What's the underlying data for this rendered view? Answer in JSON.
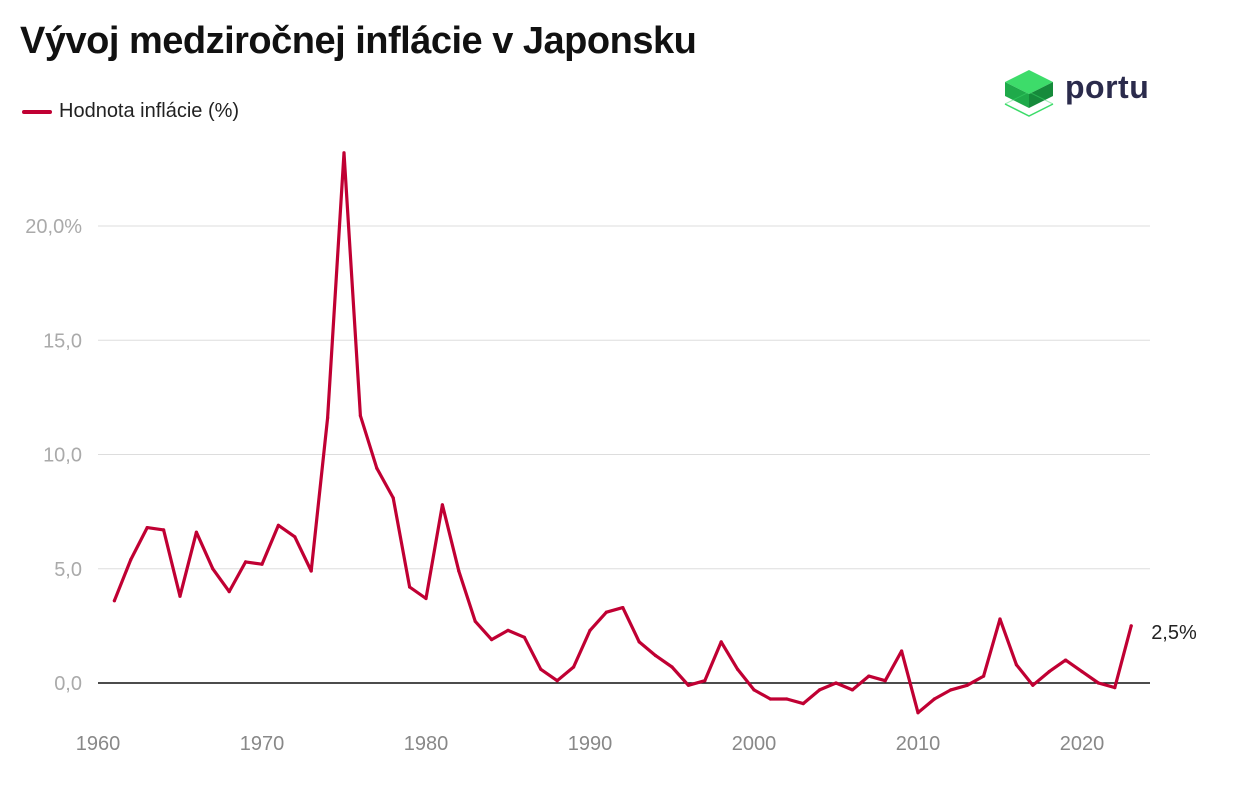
{
  "chart_data": {
    "type": "line",
    "title": "Vývoj medziročnej inflácie v Japonsku",
    "legend": [
      "Hodnota inflácie (%)"
    ],
    "legend_position": "top-left",
    "xlabel": "",
    "ylabel": "",
    "ylim": [
      -1.6,
      24
    ],
    "xlim": [
      1960,
      2024
    ],
    "yticks": [
      {
        "value": 0,
        "label": "0,0"
      },
      {
        "value": 5,
        "label": "5,0"
      },
      {
        "value": 10,
        "label": "10,0"
      },
      {
        "value": 15,
        "label": "15,0"
      },
      {
        "value": 20,
        "label": "20,0%"
      }
    ],
    "xticks": [
      {
        "value": 1960,
        "label": "1960"
      },
      {
        "value": 1970,
        "label": "1970"
      },
      {
        "value": 1980,
        "label": "1980"
      },
      {
        "value": 1990,
        "label": "1990"
      },
      {
        "value": 2000,
        "label": "2000"
      },
      {
        "value": 2010,
        "label": "2010"
      },
      {
        "value": 2020,
        "label": "2020"
      }
    ],
    "series": [
      {
        "name": "Hodnota inflácie (%)",
        "color": "#c00033",
        "x": [
          1961,
          1962,
          1963,
          1964,
          1965,
          1966,
          1967,
          1968,
          1969,
          1970,
          1971,
          1972,
          1973,
          1974,
          1975,
          1976,
          1977,
          1978,
          1979,
          1980,
          1981,
          1982,
          1983,
          1984,
          1985,
          1986,
          1987,
          1988,
          1989,
          1990,
          1991,
          1992,
          1993,
          1994,
          1995,
          1996,
          1997,
          1998,
          1999,
          2000,
          2001,
          2002,
          2003,
          2004,
          2005,
          2006,
          2007,
          2008,
          2009,
          2010,
          2011,
          2012,
          2013,
          2014,
          2015,
          2016,
          2017,
          2018,
          2019,
          2020,
          2021,
          2022,
          2023
        ],
        "values": [
          3.6,
          5.4,
          6.8,
          6.7,
          3.8,
          6.6,
          5.0,
          4.0,
          5.3,
          5.2,
          6.9,
          6.4,
          4.9,
          11.6,
          23.2,
          11.7,
          9.4,
          8.1,
          4.2,
          3.7,
          7.8,
          4.9,
          2.7,
          1.9,
          2.3,
          2.0,
          0.6,
          0.1,
          0.7,
          2.3,
          3.1,
          3.3,
          1.8,
          1.2,
          0.7,
          -0.1,
          0.1,
          1.8,
          0.6,
          -0.3,
          -0.7,
          -0.7,
          -0.9,
          -0.3,
          0.0,
          -0.3,
          0.3,
          0.1,
          1.4,
          -1.3,
          -0.7,
          -0.3,
          -0.1,
          0.3,
          2.8,
          0.8,
          -0.1,
          0.5,
          1.0,
          0.5,
          0.0,
          -0.2,
          2.5
        ]
      }
    ],
    "annotations": [
      {
        "x": 2023,
        "y": 2.5,
        "label": "2,5%"
      }
    ]
  },
  "brand": {
    "name": "portu",
    "logo_icon": "green-cube-icon",
    "accent_color": "#c00033"
  }
}
